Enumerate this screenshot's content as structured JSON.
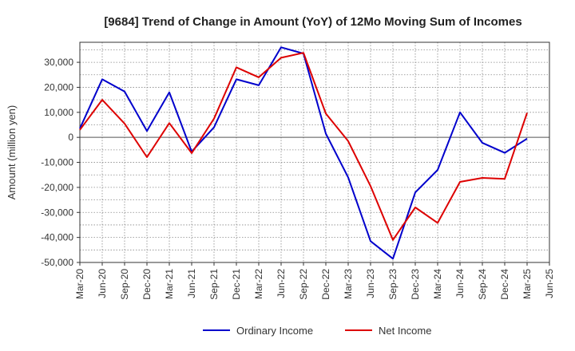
{
  "chart_data": {
    "type": "line",
    "title": "[9684]  Trend of Change in Amount (YoY) of 12Mo Moving Sum of Incomes",
    "ylabel": "Amount (million yen)",
    "xlabel": "",
    "ylim": [
      -50000,
      38000
    ],
    "y_ticks": [
      30000,
      20000,
      10000,
      0,
      -10000,
      -20000,
      -30000,
      -40000,
      -50000
    ],
    "y_tick_labels": [
      "30,000",
      "20,000",
      "10,000",
      "0",
      "-10,000",
      "-20,000",
      "-30,000",
      "-40,000",
      "-50,000"
    ],
    "x_tick_labels": [
      "Mar-20",
      "Jun-20",
      "Sep-20",
      "Dec-20",
      "Mar-21",
      "Jun-21",
      "Sep-21",
      "Dec-21",
      "Mar-22",
      "Jun-22",
      "Sep-22",
      "Dec-22",
      "Mar-23",
      "Jun-23",
      "Sep-23",
      "Dec-23",
      "Mar-24",
      "Jun-24",
      "Sep-24",
      "Dec-24",
      "Mar-25",
      "Jun-25"
    ],
    "grid": true,
    "legend_position": "bottom",
    "series": [
      {
        "name": "Ordinary Income",
        "color": "#0000cc",
        "values": [
          3500,
          23200,
          18300,
          2500,
          18000,
          -5700,
          4000,
          23200,
          20800,
          36000,
          33500,
          1500,
          -16000,
          -41500,
          -48500,
          -22000,
          -13000,
          10000,
          -2200,
          -6200,
          -500
        ]
      },
      {
        "name": "Net Income",
        "color": "#dd0000",
        "values": [
          3000,
          15000,
          5500,
          -7900,
          5700,
          -6300,
          7500,
          28000,
          24000,
          31800,
          33800,
          9500,
          -1500,
          -19500,
          -41000,
          -28000,
          -34200,
          -17800,
          -16200,
          -16600,
          9800
        ]
      }
    ]
  }
}
